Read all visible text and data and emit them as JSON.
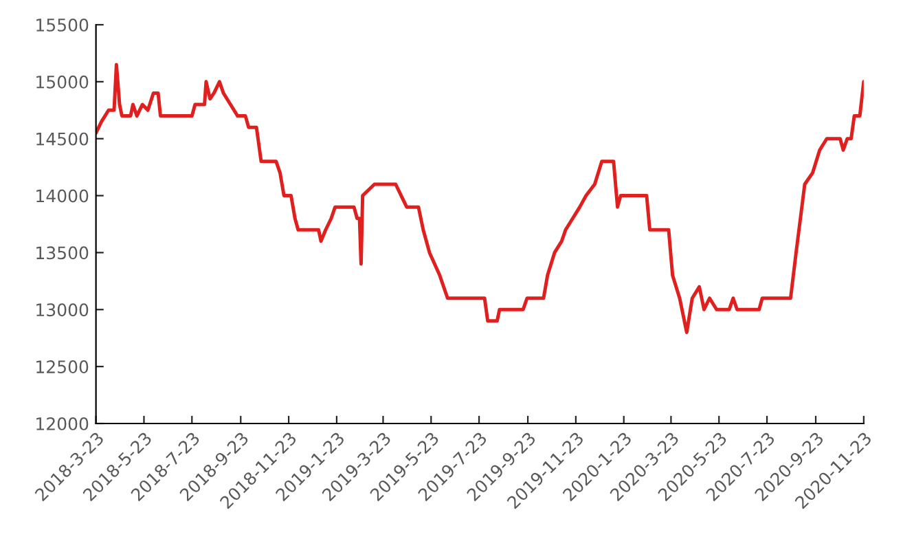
{
  "chart_data": {
    "type": "line",
    "grid": false,
    "marker": "none",
    "line_style": "solid",
    "x": [
      "2018-03-23",
      "2018-03-30",
      "2018-04-08",
      "2018-04-15",
      "2018-04-18",
      "2018-04-22",
      "2018-04-25",
      "2018-05-06",
      "2018-05-09",
      "2018-05-14",
      "2018-05-21",
      "2018-05-28",
      "2018-06-04",
      "2018-06-10",
      "2018-06-13",
      "2018-07-23",
      "2018-07-27",
      "2018-08-08",
      "2018-08-10",
      "2018-08-15",
      "2018-08-20",
      "2018-08-27",
      "2018-09-01",
      "2018-09-10",
      "2018-09-19",
      "2018-09-29",
      "2018-10-03",
      "2018-10-13",
      "2018-10-19",
      "2018-11-07",
      "2018-11-12",
      "2018-11-17",
      "2018-11-26",
      "2018-12-01",
      "2018-12-05",
      "2018-12-31",
      "2019-01-03",
      "2019-01-09",
      "2019-01-16",
      "2019-01-21",
      "2019-02-14",
      "2019-02-18",
      "2019-02-21",
      "2019-02-23",
      "2019-02-25",
      "2019-03-12",
      "2019-04-08",
      "2019-04-15",
      "2019-04-22",
      "2019-05-07",
      "2019-05-13",
      "2019-05-21",
      "2019-06-03",
      "2019-06-13",
      "2019-07-30",
      "2019-08-03",
      "2019-08-15",
      "2019-08-18",
      "2019-09-17",
      "2019-09-22",
      "2019-10-13",
      "2019-10-18",
      "2019-10-27",
      "2019-11-05",
      "2019-11-10",
      "2019-11-19",
      "2019-11-28",
      "2019-12-06",
      "2019-12-17",
      "2019-12-26",
      "2020-01-10",
      "2020-01-15",
      "2020-01-19",
      "2020-02-21",
      "2020-02-25",
      "2020-03-20",
      "2020-03-25",
      "2020-04-03",
      "2020-04-12",
      "2020-04-19",
      "2020-04-28",
      "2020-05-04",
      "2020-05-11",
      "2020-05-20",
      "2020-06-05",
      "2020-06-10",
      "2020-06-15",
      "2020-07-13",
      "2020-07-17",
      "2020-08-22",
      "2020-08-29",
      "2020-09-09",
      "2020-09-19",
      "2020-09-28",
      "2020-10-07",
      "2020-10-24",
      "2020-10-28",
      "2020-11-02",
      "2020-11-07",
      "2020-11-11",
      "2020-11-18",
      "2020-11-23"
    ],
    "series": [
      {
        "color": "#e0201e",
        "values": [
          14550,
          14650,
          14750,
          14750,
          15150,
          14800,
          14700,
          14700,
          14800,
          14700,
          14800,
          14750,
          14900,
          14900,
          14700,
          14700,
          14800,
          14800,
          15000,
          14850,
          14900,
          15000,
          14900,
          14800,
          14700,
          14700,
          14600,
          14600,
          14300,
          14300,
          14200,
          14000,
          14000,
          13800,
          13700,
          13700,
          13600,
          13700,
          13800,
          13900,
          13900,
          13800,
          13800,
          13400,
          14000,
          14100,
          14100,
          14000,
          13900,
          13900,
          13700,
          13500,
          13300,
          13100,
          13100,
          12900,
          12900,
          13000,
          13000,
          13100,
          13100,
          13300,
          13500,
          13600,
          13700,
          13800,
          13900,
          14000,
          14100,
          14300,
          14300,
          13900,
          14000,
          14000,
          13700,
          13700,
          13300,
          13100,
          12800,
          13100,
          13200,
          13000,
          13100,
          13000,
          13000,
          13100,
          13000,
          13000,
          13100,
          13100,
          13500,
          14100,
          14200,
          14400,
          14500,
          14500,
          14400,
          14500,
          14500,
          14700,
          14700,
          15000
        ]
      }
    ],
    "xlim": [
      "2018-03-23",
      "2020-11-23"
    ],
    "xticks": [
      {
        "value": "2018-03-23",
        "label": "2018-3-23"
      },
      {
        "value": "2018-05-23",
        "label": "2018-5-23"
      },
      {
        "value": "2018-07-23",
        "label": "2018-7-23"
      },
      {
        "value": "2018-09-23",
        "label": "2018-9-23"
      },
      {
        "value": "2018-11-23",
        "label": "2018-11-23"
      },
      {
        "value": "2019-01-23",
        "label": "2019-1-23"
      },
      {
        "value": "2019-03-23",
        "label": "2019-3-23"
      },
      {
        "value": "2019-05-23",
        "label": "2019-5-23"
      },
      {
        "value": "2019-07-23",
        "label": "2019-7-23"
      },
      {
        "value": "2019-09-23",
        "label": "2019-9-23"
      },
      {
        "value": "2019-11-23",
        "label": "2019-11-23"
      },
      {
        "value": "2020-01-23",
        "label": "2020-1-23"
      },
      {
        "value": "2020-03-23",
        "label": "2020-3-23"
      },
      {
        "value": "2020-05-23",
        "label": "2020-5-23"
      },
      {
        "value": "2020-07-23",
        "label": "2020-7-23"
      },
      {
        "value": "2020-09-23",
        "label": "2020-9-23"
      },
      {
        "value": "2020-11-23",
        "label": "2020-11-23"
      }
    ],
    "ylim": [
      12000,
      15500
    ],
    "yticks": [
      12000,
      12500,
      13000,
      13500,
      14000,
      14500,
      15000,
      15500
    ]
  }
}
